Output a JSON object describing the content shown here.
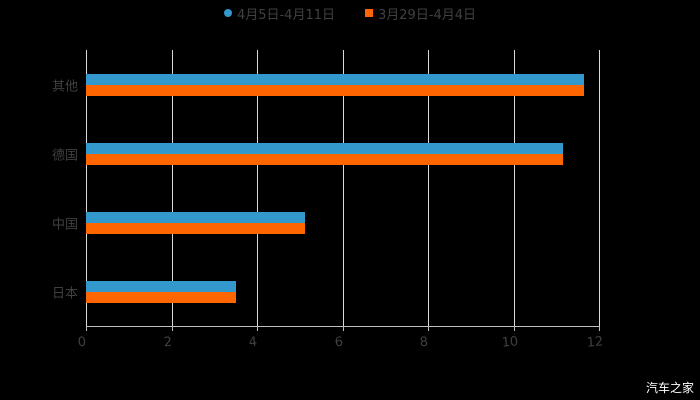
{
  "chart_data": {
    "type": "bar",
    "orientation": "horizontal",
    "categories": [
      "其他",
      "德国",
      "中国",
      "日本"
    ],
    "series": [
      {
        "name": "4月5日-4月11日",
        "color": "#3399CC",
        "values": [
          11.65,
          11.15,
          5.13,
          3.5
        ]
      },
      {
        "name": "3月29日-4月4日",
        "color": "#FF6600",
        "values": [
          11.65,
          11.15,
          5.13,
          3.5
        ]
      }
    ],
    "title": "",
    "xlabel": "",
    "ylabel": "",
    "xlim": [
      0,
      12
    ],
    "xticks": [
      "0",
      "2",
      "4",
      "6",
      "8",
      "10",
      "12"
    ],
    "grid": true,
    "legend_position": "top"
  },
  "legend": {
    "items": [
      {
        "label": "4月5日-4月11日",
        "color": "#3399CC"
      },
      {
        "label": "3月29日-4月4日",
        "color": "#FF6600"
      }
    ]
  },
  "watermark": "汽车之家"
}
